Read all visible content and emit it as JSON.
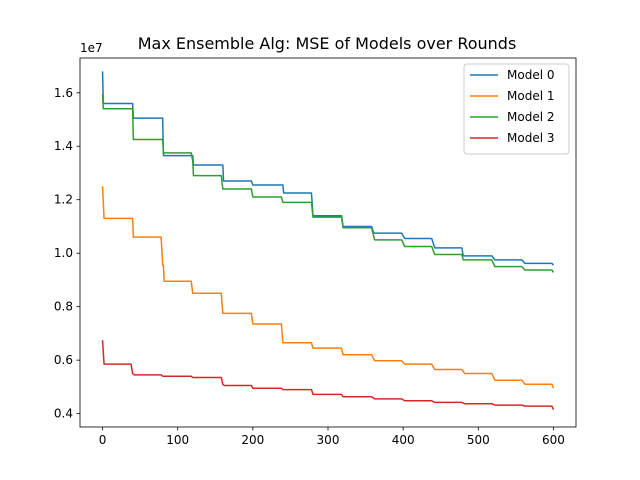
{
  "chart_data": {
    "type": "line",
    "title": "Max Ensemble Alg: MSE of Models over Rounds",
    "xlabel": "",
    "ylabel": "",
    "y_offset_label": "1e7",
    "xlim": [
      -30,
      630
    ],
    "ylim": [
      0.35,
      1.73
    ],
    "x_ticks": [
      0,
      100,
      200,
      300,
      400,
      500,
      600
    ],
    "y_ticks": [
      0.4,
      0.6,
      0.8,
      1.0,
      1.2,
      1.4,
      1.6
    ],
    "y_tick_labels": [
      "0.4",
      "0.6",
      "0.8",
      "1.0",
      "1.2",
      "1.4",
      "1.6"
    ],
    "grid": false,
    "legend_position": "top-right",
    "series": [
      {
        "name": "Model 0",
        "color": "#1f77b4",
        "points": [
          [
            0,
            1.68
          ],
          [
            1,
            1.56
          ],
          [
            40,
            1.56
          ],
          [
            41,
            1.505
          ],
          [
            80,
            1.505
          ],
          [
            81,
            1.365
          ],
          [
            120,
            1.365
          ],
          [
            121,
            1.33
          ],
          [
            160,
            1.33
          ],
          [
            161,
            1.27
          ],
          [
            198,
            1.27
          ],
          [
            200,
            1.255
          ],
          [
            240,
            1.255
          ],
          [
            241,
            1.225
          ],
          [
            278,
            1.225
          ],
          [
            280,
            1.14
          ],
          [
            318,
            1.14
          ],
          [
            320,
            1.1
          ],
          [
            358,
            1.1
          ],
          [
            361,
            1.075
          ],
          [
            398,
            1.075
          ],
          [
            402,
            1.055
          ],
          [
            438,
            1.055
          ],
          [
            442,
            1.02
          ],
          [
            478,
            1.02
          ],
          [
            480,
            0.99
          ],
          [
            518,
            0.99
          ],
          [
            522,
            0.975
          ],
          [
            558,
            0.975
          ],
          [
            562,
            0.962
          ],
          [
            598,
            0.962
          ],
          [
            600,
            0.955
          ]
        ]
      },
      {
        "name": "Model 1",
        "color": "#ff7f0e",
        "points": [
          [
            0,
            1.25
          ],
          [
            2,
            1.13
          ],
          [
            40,
            1.13
          ],
          [
            41,
            1.06
          ],
          [
            78,
            1.06
          ],
          [
            80,
            0.955
          ],
          [
            81,
            0.955
          ],
          [
            82,
            0.895
          ],
          [
            118,
            0.895
          ],
          [
            120,
            0.85
          ],
          [
            158,
            0.85
          ],
          [
            160,
            0.775
          ],
          [
            198,
            0.775
          ],
          [
            200,
            0.735
          ],
          [
            238,
            0.735
          ],
          [
            240,
            0.665
          ],
          [
            278,
            0.665
          ],
          [
            280,
            0.645
          ],
          [
            318,
            0.645
          ],
          [
            320,
            0.62
          ],
          [
            358,
            0.62
          ],
          [
            362,
            0.598
          ],
          [
            398,
            0.598
          ],
          [
            402,
            0.585
          ],
          [
            438,
            0.585
          ],
          [
            442,
            0.565
          ],
          [
            478,
            0.565
          ],
          [
            482,
            0.55
          ],
          [
            518,
            0.55
          ],
          [
            522,
            0.525
          ],
          [
            558,
            0.525
          ],
          [
            562,
            0.51
          ],
          [
            598,
            0.51
          ],
          [
            600,
            0.495
          ]
        ]
      },
      {
        "name": "Model 2",
        "color": "#2ca02c",
        "points": [
          [
            0,
            1.595
          ],
          [
            1,
            1.54
          ],
          [
            40,
            1.54
          ],
          [
            41,
            1.425
          ],
          [
            80,
            1.425
          ],
          [
            81,
            1.375
          ],
          [
            118,
            1.375
          ],
          [
            120,
            1.345
          ],
          [
            121,
            1.29
          ],
          [
            158,
            1.29
          ],
          [
            160,
            1.24
          ],
          [
            198,
            1.24
          ],
          [
            200,
            1.21
          ],
          [
            238,
            1.21
          ],
          [
            240,
            1.19
          ],
          [
            278,
            1.19
          ],
          [
            280,
            1.135
          ],
          [
            318,
            1.135
          ],
          [
            320,
            1.095
          ],
          [
            358,
            1.095
          ],
          [
            362,
            1.05
          ],
          [
            398,
            1.05
          ],
          [
            402,
            1.025
          ],
          [
            438,
            1.025
          ],
          [
            442,
            0.995
          ],
          [
            478,
            0.995
          ],
          [
            480,
            0.975
          ],
          [
            518,
            0.975
          ],
          [
            522,
            0.95
          ],
          [
            558,
            0.95
          ],
          [
            562,
            0.937
          ],
          [
            598,
            0.937
          ],
          [
            600,
            0.928
          ]
        ]
      },
      {
        "name": "Model 3",
        "color": "#d62728",
        "points": [
          [
            0,
            0.675
          ],
          [
            2,
            0.585
          ],
          [
            38,
            0.585
          ],
          [
            40,
            0.55
          ],
          [
            42,
            0.545
          ],
          [
            78,
            0.545
          ],
          [
            80,
            0.54
          ],
          [
            118,
            0.54
          ],
          [
            120,
            0.535
          ],
          [
            158,
            0.535
          ],
          [
            160,
            0.51
          ],
          [
            162,
            0.505
          ],
          [
            198,
            0.505
          ],
          [
            200,
            0.495
          ],
          [
            238,
            0.495
          ],
          [
            240,
            0.49
          ],
          [
            278,
            0.49
          ],
          [
            280,
            0.472
          ],
          [
            318,
            0.472
          ],
          [
            320,
            0.463
          ],
          [
            358,
            0.463
          ],
          [
            362,
            0.455
          ],
          [
            398,
            0.455
          ],
          [
            402,
            0.448
          ],
          [
            438,
            0.448
          ],
          [
            442,
            0.442
          ],
          [
            478,
            0.442
          ],
          [
            482,
            0.437
          ],
          [
            518,
            0.437
          ],
          [
            522,
            0.432
          ],
          [
            558,
            0.432
          ],
          [
            562,
            0.428
          ],
          [
            598,
            0.428
          ],
          [
            600,
            0.415
          ]
        ]
      }
    ]
  }
}
